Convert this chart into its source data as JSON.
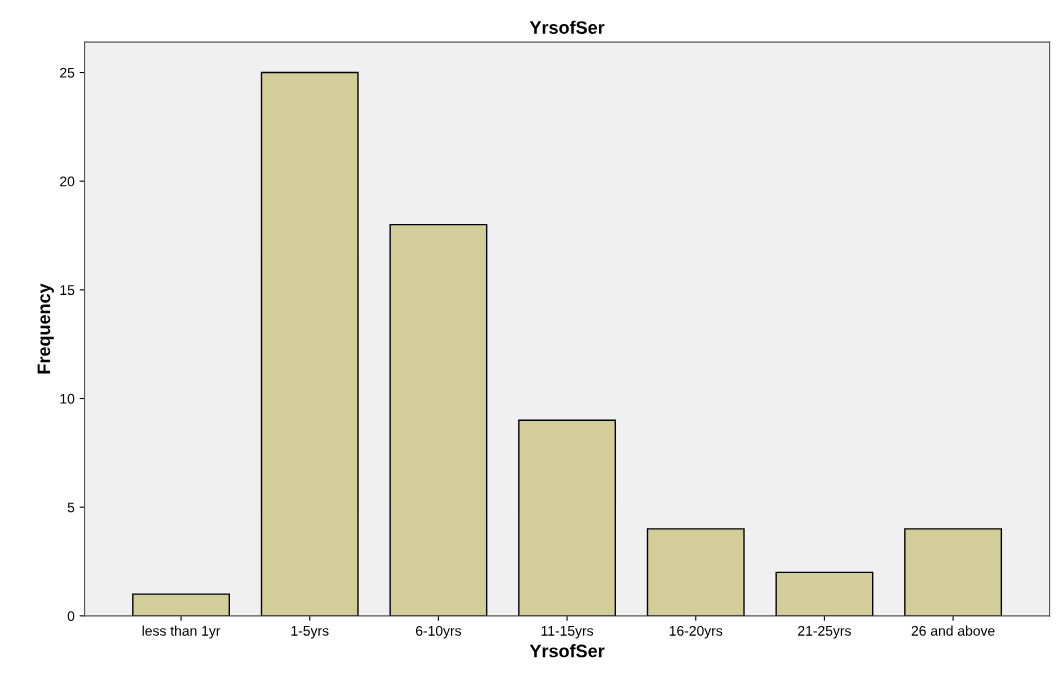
{
  "chart_data": {
    "type": "bar",
    "title": "YrsofSer",
    "xlabel": "YrsofSer",
    "ylabel": "Frequency",
    "categories": [
      "less than 1yr",
      "1-5yrs",
      "6-10yrs",
      "11-15yrs",
      "16-20yrs",
      "21-25yrs",
      "26 and above"
    ],
    "values": [
      1,
      25,
      18,
      9,
      4,
      2,
      4
    ],
    "color": "#d3ce99",
    "ylim": [
      0,
      26.4
    ],
    "yticks": [
      0,
      5,
      10,
      15,
      20,
      25
    ],
    "grid": false
  }
}
